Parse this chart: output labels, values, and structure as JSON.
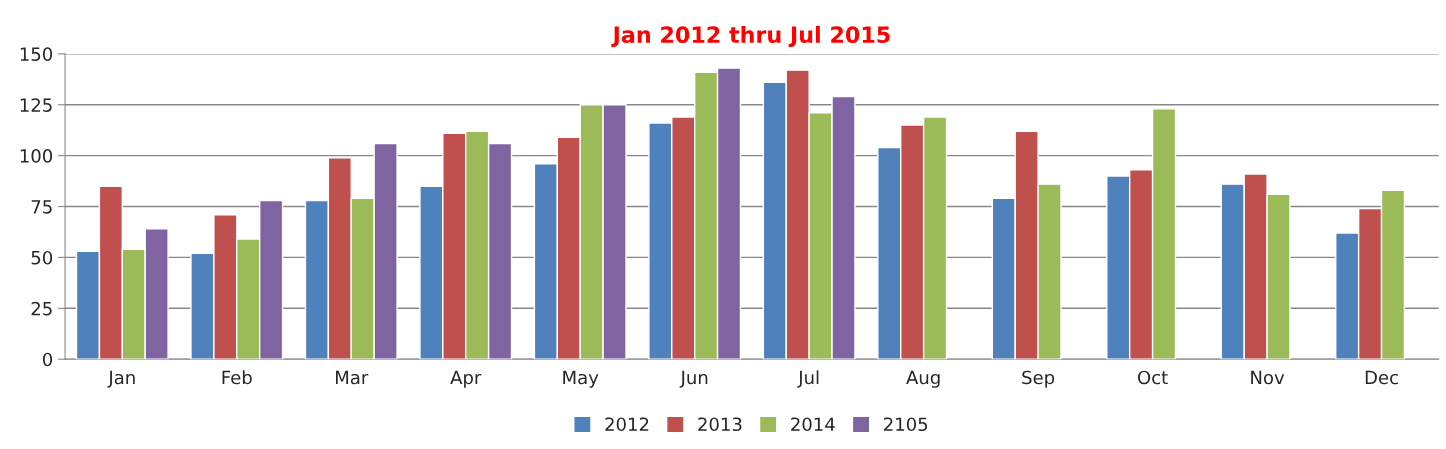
{
  "chart_data": {
    "type": "bar",
    "title": "Jan 2012 thru Jul 2015",
    "categories": [
      "Jan",
      "Feb",
      "Mar",
      "Apr",
      "May",
      "Jun",
      "Jul",
      "Aug",
      "Sep",
      "Oct",
      "Nov",
      "Dec"
    ],
    "series": [
      {
        "name": "2012",
        "color": "#4f81bd",
        "values": [
          53,
          52,
          78,
          85,
          96,
          116,
          136,
          104,
          79,
          90,
          86,
          62
        ]
      },
      {
        "name": "2013",
        "color": "#c0504d",
        "values": [
          85,
          71,
          99,
          111,
          109,
          119,
          142,
          115,
          112,
          93,
          91,
          74
        ]
      },
      {
        "name": "2014",
        "color": "#9bbb59",
        "values": [
          54,
          59,
          79,
          112,
          125,
          141,
          121,
          119,
          86,
          123,
          81,
          83
        ]
      },
      {
        "name": "2105",
        "color": "#8064a2",
        "values": [
          64,
          78,
          106,
          106,
          125,
          143,
          129,
          null,
          null,
          null,
          null,
          null
        ]
      }
    ],
    "ylim": [
      0,
      150
    ],
    "yticks": [
      0,
      25,
      50,
      75,
      100,
      125,
      150
    ],
    "grid": "y",
    "legend": "bottom"
  }
}
